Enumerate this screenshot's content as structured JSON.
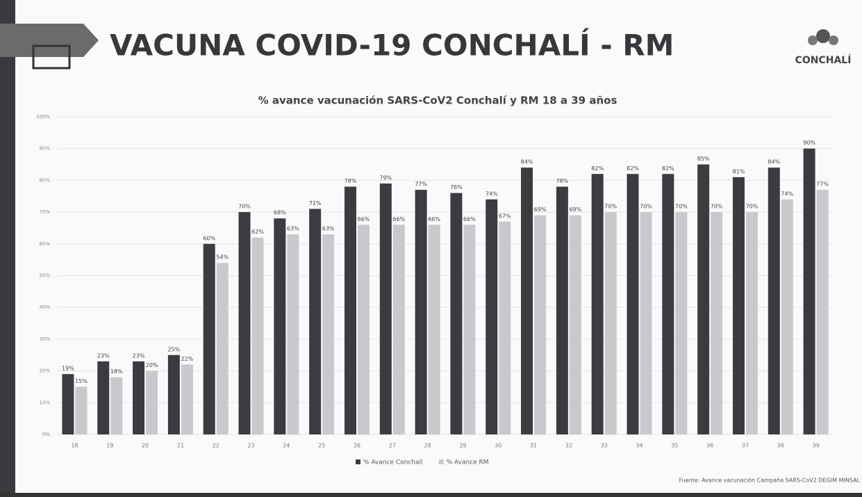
{
  "header": {
    "title": "VACUNA COVID-19 CONCHALÍ - RM",
    "logo": "CONCHALÍ"
  },
  "chart_data": {
    "type": "bar",
    "title": "% avance vacunación SARS-CoV2 Conchalí y RM 18 a 39 años",
    "categories": [
      "18",
      "19",
      "20",
      "21",
      "22",
      "23",
      "24",
      "25",
      "26",
      "27",
      "28",
      "29",
      "30",
      "31",
      "32",
      "33",
      "34",
      "35",
      "36",
      "37",
      "38",
      "39"
    ],
    "series": [
      {
        "name": "% Avance Conchalí",
        "color": "#3b3b42",
        "values": [
          19,
          23,
          23,
          25,
          60,
          70,
          68,
          71,
          78,
          79,
          77,
          76,
          74,
          84,
          78,
          82,
          82,
          82,
          85,
          81,
          84,
          90
        ],
        "value_labels": [
          "19%",
          "23%",
          "23%",
          "25%",
          "60%",
          "70%",
          "68%",
          "71%",
          "78%",
          "79%",
          "77%",
          "76%",
          "74%",
          "84%",
          "78%",
          "82%",
          "82%",
          "82%",
          "85%",
          "81%",
          "84%",
          "90%"
        ]
      },
      {
        "name": "% Avance RM",
        "color": "#c9c9cd",
        "values": [
          15,
          18,
          20,
          22,
          54,
          62,
          63,
          63,
          66,
          66,
          66,
          66,
          67,
          69,
          69,
          70,
          70,
          70,
          70,
          70,
          74,
          77
        ],
        "value_labels": [
          "15%",
          "18%",
          "20%",
          "22%",
          "54%",
          "62%",
          "63%",
          "63%",
          "66%",
          "66%",
          "66%",
          "66%",
          "67%",
          "69%",
          "69%",
          "70%",
          "70%",
          "70%",
          "70%",
          "70%",
          "74%",
          "77%"
        ]
      }
    ],
    "ylim": [
      0,
      100
    ],
    "yticks": [
      {
        "value": 0,
        "label": "0%"
      },
      {
        "value": 10,
        "label": "10%"
      },
      {
        "value": 20,
        "label": "20%"
      },
      {
        "value": 30,
        "label": "30%"
      },
      {
        "value": 40,
        "label": "40%"
      },
      {
        "value": 50,
        "label": "50%"
      },
      {
        "value": 60,
        "label": "60%"
      },
      {
        "value": 70,
        "label": "70%"
      },
      {
        "value": 80,
        "label": "80%"
      },
      {
        "value": 90,
        "label": "90%"
      },
      {
        "value": 100,
        "label": "100%"
      }
    ],
    "grid": true,
    "source": "Fuente: Avance vacunación Campaña SARS-CoV2 DEGIM MINSAL"
  }
}
